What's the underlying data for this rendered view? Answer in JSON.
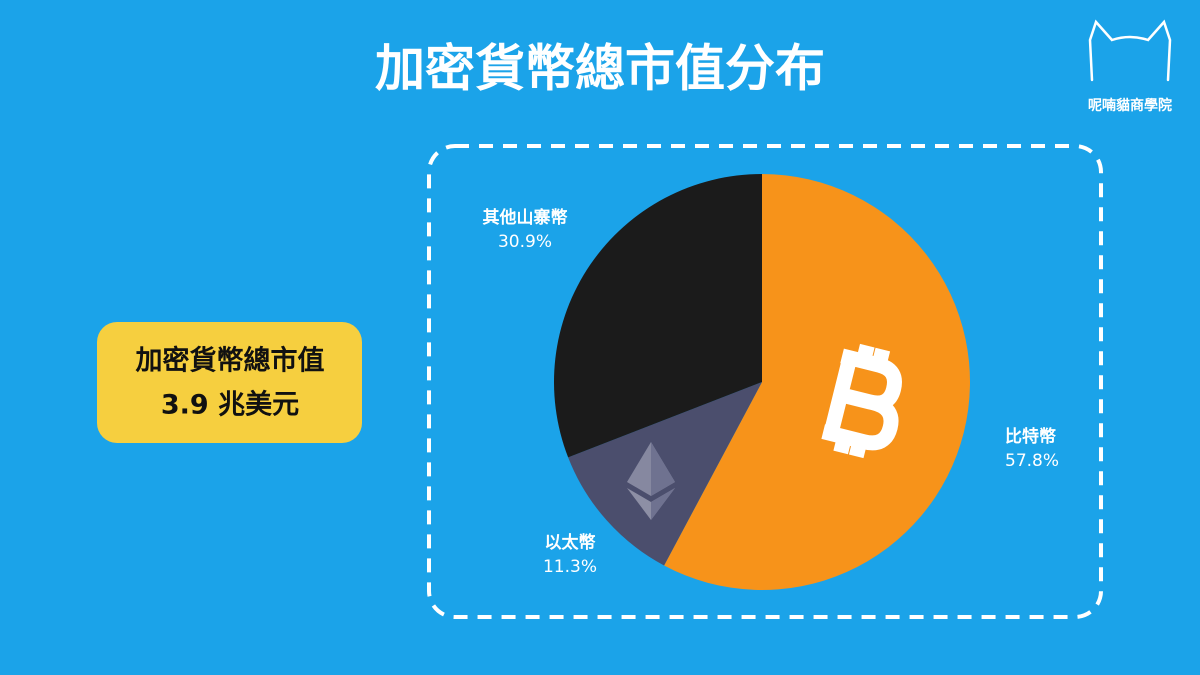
{
  "chart_data": {
    "type": "pie",
    "title": "加密貨幣總市值分布",
    "categories": [
      "比特幣",
      "以太幣",
      "其他山寨幣"
    ],
    "values": [
      57.8,
      11.3,
      30.9
    ],
    "value_labels": [
      "57.8%",
      "11.3%",
      "30.9%"
    ],
    "colors": [
      "#f7931a",
      "#4b4e6d",
      "#1b1b1b"
    ],
    "annotations": [
      "加密貨幣總市值",
      "3.9 兆美元"
    ]
  },
  "brand": "呢喃貓商學院"
}
